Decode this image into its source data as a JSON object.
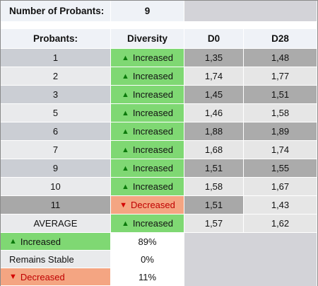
{
  "summary": {
    "label": "Number of Probants:",
    "value": "9"
  },
  "headers": [
    "Probants:",
    "Diversity",
    "D0",
    "D28"
  ],
  "rows": [
    {
      "probant": "1",
      "diversity": "Increased",
      "d0": "1,35",
      "d28": "1,48"
    },
    {
      "probant": "2",
      "diversity": "Increased",
      "d0": "1,74",
      "d28": "1,77"
    },
    {
      "probant": "3",
      "diversity": "Increased",
      "d0": "1,45",
      "d28": "1,51"
    },
    {
      "probant": "5",
      "diversity": "Increased",
      "d0": "1,46",
      "d28": "1,58"
    },
    {
      "probant": "6",
      "diversity": "Increased",
      "d0": "1,88",
      "d28": "1,89"
    },
    {
      "probant": "7",
      "diversity": "Increased",
      "d0": "1,68",
      "d28": "1,74"
    },
    {
      "probant": "9",
      "diversity": "Increased",
      "d0": "1,51",
      "d28": "1,55"
    },
    {
      "probant": "10",
      "diversity": "Increased",
      "d0": "1,58",
      "d28": "1,67"
    },
    {
      "probant": "11",
      "diversity": "Decreased",
      "d0": "1,51",
      "d28": "1,43"
    }
  ],
  "average": {
    "label": "AVERAGE",
    "diversity": "Increased",
    "d0": "1,57",
    "d28": "1,62"
  },
  "legend": [
    {
      "label": "Increased",
      "value": "89%"
    },
    {
      "label": "Remains Stable",
      "value": "0%"
    },
    {
      "label": "Decreased",
      "value": "11%"
    }
  ],
  "colors": {
    "increased": "#7fd873",
    "decreased": "#f4a582",
    "stable": "#e9eaec",
    "header": "#eff2f7",
    "row_dark": "#cbced4",
    "row_light": "#e9eaec",
    "value_dark": "#ababab",
    "value_light": "#e6e6e6",
    "row_decreased": "#a8a8a8",
    "panel": "#d3d3d8"
  },
  "icons": {
    "increase": "up-triangle-icon",
    "decrease": "down-triangle-icon"
  }
}
